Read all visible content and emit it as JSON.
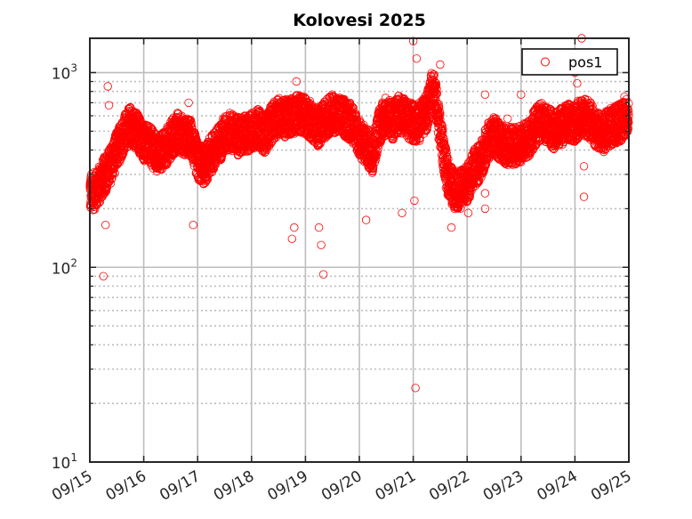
{
  "chart_data": {
    "type": "scatter",
    "title": "Kolovesi 2025",
    "xlabel": "",
    "ylabel": "",
    "x_ticks": [
      "09/15",
      "09/16",
      "09/17",
      "09/18",
      "09/19",
      "09/20",
      "09/21",
      "09/22",
      "09/23",
      "09/24",
      "09/25"
    ],
    "xlim": [
      "2025-09-15",
      "2025-09-25"
    ],
    "y_scale": "log",
    "ylim": [
      10,
      1500
    ],
    "y_ticks": [
      {
        "value": 10,
        "base": "10",
        "exp": "1"
      },
      {
        "value": 100,
        "base": "10",
        "exp": "2"
      },
      {
        "value": 1000,
        "base": "10",
        "exp": "3"
      }
    ],
    "grid": "on",
    "legend": {
      "placement": "top-right",
      "entries": [
        "pos1"
      ]
    },
    "marker": "open-circle",
    "series": [
      {
        "name": "pos1",
        "color": "#ff0000",
        "points": [
          [
            "2025-09-15 00:00",
            240
          ],
          [
            "2025-09-15 03:00",
            250
          ],
          [
            "2025-09-15 06:00",
            290
          ],
          [
            "2025-09-15 09:00",
            330
          ],
          [
            "2025-09-15 12:00",
            400
          ],
          [
            "2025-09-15 15:00",
            480
          ],
          [
            "2025-09-15 18:00",
            540
          ],
          [
            "2025-09-15 21:00",
            500
          ],
          [
            "2025-09-16 00:00",
            440
          ],
          [
            "2025-09-16 03:00",
            420
          ],
          [
            "2025-09-16 06:00",
            380
          ],
          [
            "2025-09-16 09:00",
            400
          ],
          [
            "2025-09-16 12:00",
            450
          ],
          [
            "2025-09-16 15:00",
            500
          ],
          [
            "2025-09-16 18:00",
            470
          ],
          [
            "2025-09-16 21:00",
            460
          ],
          [
            "2025-09-17 00:00",
            350
          ],
          [
            "2025-09-17 03:00",
            330
          ],
          [
            "2025-09-17 06:00",
            380
          ],
          [
            "2025-09-17 09:00",
            420
          ],
          [
            "2025-09-17 12:00",
            480
          ],
          [
            "2025-09-17 15:00",
            500
          ],
          [
            "2025-09-17 18:00",
            470
          ],
          [
            "2025-09-17 21:00",
            480
          ],
          [
            "2025-09-18 00:00",
            500
          ],
          [
            "2025-09-18 03:00",
            520
          ],
          [
            "2025-09-18 06:00",
            480
          ],
          [
            "2025-09-18 09:00",
            550
          ],
          [
            "2025-09-18 12:00",
            600
          ],
          [
            "2025-09-18 15:00",
            580
          ],
          [
            "2025-09-18 18:00",
            600
          ],
          [
            "2025-09-18 21:00",
            620
          ],
          [
            "2025-09-19 00:00",
            600
          ],
          [
            "2025-09-19 03:00",
            560
          ],
          [
            "2025-09-19 06:00",
            520
          ],
          [
            "2025-09-19 09:00",
            580
          ],
          [
            "2025-09-19 12:00",
            620
          ],
          [
            "2025-09-19 15:00",
            600
          ],
          [
            "2025-09-19 18:00",
            580
          ],
          [
            "2025-09-19 21:00",
            550
          ],
          [
            "2025-09-20 00:00",
            460
          ],
          [
            "2025-09-20 03:00",
            420
          ],
          [
            "2025-09-20 06:00",
            380
          ],
          [
            "2025-09-20 09:00",
            540
          ],
          [
            "2025-09-20 12:00",
            600
          ],
          [
            "2025-09-20 15:00",
            560
          ],
          [
            "2025-09-20 18:00",
            620
          ],
          [
            "2025-09-20 21:00",
            580
          ],
          [
            "2025-09-21 00:00",
            550
          ],
          [
            "2025-09-21 03:00",
            560
          ],
          [
            "2025-09-21 06:00",
            620
          ],
          [
            "2025-09-21 09:00",
            880
          ],
          [
            "2025-09-21 12:00",
            500
          ],
          [
            "2025-09-21 15:00",
            300
          ],
          [
            "2025-09-21 18:00",
            250
          ],
          [
            "2025-09-21 21:00",
            250
          ],
          [
            "2025-09-22 00:00",
            270
          ],
          [
            "2025-09-22 03:00",
            320
          ],
          [
            "2025-09-22 06:00",
            350
          ],
          [
            "2025-09-22 09:00",
            440
          ],
          [
            "2025-09-22 12:00",
            480
          ],
          [
            "2025-09-22 15:00",
            430
          ],
          [
            "2025-09-22 18:00",
            420
          ],
          [
            "2025-09-22 21:00",
            420
          ],
          [
            "2025-09-23 00:00",
            430
          ],
          [
            "2025-09-23 03:00",
            450
          ],
          [
            "2025-09-23 06:00",
            520
          ],
          [
            "2025-09-23 09:00",
            560
          ],
          [
            "2025-09-23 12:00",
            540
          ],
          [
            "2025-09-23 15:00",
            500
          ],
          [
            "2025-09-23 18:00",
            530
          ],
          [
            "2025-09-23 21:00",
            560
          ],
          [
            "2025-09-24 00:00",
            550
          ],
          [
            "2025-09-24 03:00",
            600
          ],
          [
            "2025-09-24 06:00",
            580
          ],
          [
            "2025-09-24 09:00",
            520
          ],
          [
            "2025-09-24 12:00",
            480
          ],
          [
            "2025-09-24 15:00",
            520
          ],
          [
            "2025-09-24 18:00",
            540
          ],
          [
            "2025-09-24 21:00",
            560
          ],
          [
            "2025-09-25 00:00",
            600
          ]
        ],
        "outliers": [
          [
            "2025-09-15 06:00",
            90
          ],
          [
            "2025-09-15 08:00",
            850
          ],
          [
            "2025-09-15 08:30",
            680
          ],
          [
            "2025-09-15 07:00",
            165
          ],
          [
            "2025-09-16 20:00",
            700
          ],
          [
            "2025-09-16 22:00",
            165
          ],
          [
            "2025-09-18 18:00",
            140
          ],
          [
            "2025-09-18 19:00",
            160
          ],
          [
            "2025-09-18 20:00",
            900
          ],
          [
            "2025-09-19 07:00",
            130
          ],
          [
            "2025-09-19 08:00",
            92
          ],
          [
            "2025-09-19 06:00",
            160
          ],
          [
            "2025-09-20 03:00",
            175
          ],
          [
            "2025-09-20 19:00",
            190
          ],
          [
            "2025-09-21 01:00",
            24
          ],
          [
            "2025-09-21 00:00",
            1450
          ],
          [
            "2025-09-21 01:30",
            1180
          ],
          [
            "2025-09-21 00:30",
            220
          ],
          [
            "2025-09-21 12:00",
            1100
          ],
          [
            "2025-09-21 17:00",
            160
          ],
          [
            "2025-09-22 00:30",
            190
          ],
          [
            "2025-09-22 08:00",
            770
          ],
          [
            "2025-09-22 08:00",
            240
          ],
          [
            "2025-09-22 08:00",
            200
          ],
          [
            "2025-09-22 18:00",
            580
          ],
          [
            "2025-09-23 00:00",
            770
          ],
          [
            "2025-09-24 00:00",
            1000
          ],
          [
            "2025-09-24 01:00",
            880
          ],
          [
            "2025-09-24 03:00",
            1500
          ],
          [
            "2025-09-24 04:00",
            330
          ],
          [
            "2025-09-24 04:00",
            230
          ],
          [
            "2025-09-24 18:00",
            650
          ],
          [
            "2025-09-24 22:00",
            750
          ]
        ]
      }
    ]
  }
}
